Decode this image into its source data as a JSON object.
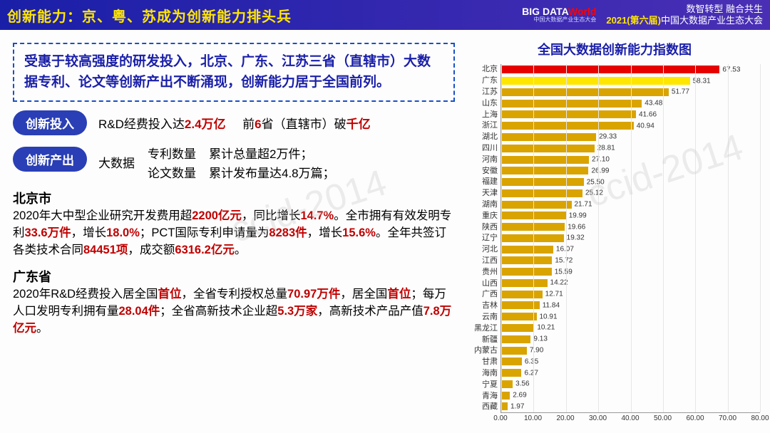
{
  "header": {
    "title": "创新能力：京、粤、苏成为创新能力排头兵",
    "logo_main_a": "BIG DATA",
    "logo_main_b": "World",
    "logo_sub": "中国大数据产业生态大会",
    "conf_line1": "数智转型  融合共生",
    "conf_year": "2021(第六届)",
    "conf_line2_rest": "中国大数据产业生态大会"
  },
  "colors": {
    "bar_default": "#d9a300",
    "header_bg_from": "#1a1fa8",
    "header_bg_to": "#4a2fb5",
    "highlight": "#c00000",
    "title_blue": "#1a1fa8"
  },
  "summary": "受惠于较高强度的研发投入，北京、广东、江苏三省（直辖市）大数据专利、论文等创新产出不断涌现，创新能力居于全国前列。",
  "input_row": {
    "pill": "创新投入",
    "text_a": "R&D经费投入达",
    "text_a_hi": "2.4万亿",
    "text_b_a": "前",
    "text_b_hi1": "6",
    "text_b_mid": "省（直辖市）破",
    "text_b_hi2": "千亿"
  },
  "output_row": {
    "pill": "创新产出",
    "bigdata": "大数据",
    "r1a": "专利数量",
    "r1b": "累计总量超2万件；",
    "r2a": "论文数量",
    "r2b": "累计发布量达4.8万篇；"
  },
  "beijing": {
    "name": "北京市",
    "line": "2020年大中型企业研究开发费用超<span class='hi'>2200亿元</span>，同比增长<span class='hi'>14.7%</span>。全市拥有有效发明专利<span class='hi'>33.6万件</span>，增长<span class='hi'>18.0%</span>；PCT国际专利申请量为<span class='hi'>8283件</span>，增长<span class='hi'>15.6%</span>。全年共签订各类技术合同<span class='hi'>84451项</span>，成交额<span class='hi'>6316.2亿元</span>。"
  },
  "guangdong": {
    "name": "广东省",
    "line": "2020年R&D经费投入居全国<span class='hi'>首位</span>，全省专利授权总量<span class='hi'>70.97万件</span>，居全国<span class='hi'>首位</span>；每万人口发明专利拥有量<span class='hi'>28.04件</span>；全省高新技术企业超<span class='hi'>5.3万家</span>，高新技术产品产值<span class='hi'>7.8万亿元</span>。"
  },
  "chart": {
    "title": "全国大数据创新能力指数图",
    "x_max": 80,
    "x_ticks": [
      0,
      10,
      20,
      30,
      40,
      50,
      60,
      70,
      80
    ],
    "x_tick_labels": [
      "0.00",
      "10.00",
      "20.00",
      "30.00",
      "40.00",
      "50.00",
      "60.00",
      "70.00",
      "80.00"
    ],
    "bars": [
      {
        "label": "北京",
        "value": 67.53,
        "color": "#e60000"
      },
      {
        "label": "广东",
        "value": 58.31,
        "color": "#ffe600"
      },
      {
        "label": "江苏",
        "value": 51.77,
        "color": "#d9a300"
      },
      {
        "label": "山东",
        "value": 43.48,
        "color": "#d9a300"
      },
      {
        "label": "上海",
        "value": 41.66,
        "color": "#d9a300"
      },
      {
        "label": "浙江",
        "value": 40.94,
        "color": "#d9a300"
      },
      {
        "label": "湖北",
        "value": 29.33,
        "color": "#d9a300"
      },
      {
        "label": "四川",
        "value": 28.81,
        "color": "#d9a300"
      },
      {
        "label": "河南",
        "value": 27.1,
        "color": "#d9a300"
      },
      {
        "label": "安徽",
        "value": 26.99,
        "color": "#d9a300"
      },
      {
        "label": "福建",
        "value": 25.5,
        "color": "#d9a300"
      },
      {
        "label": "天津",
        "value": 25.12,
        "color": "#d9a300"
      },
      {
        "label": "湖南",
        "value": 21.71,
        "color": "#d9a300"
      },
      {
        "label": "重庆",
        "value": 19.99,
        "color": "#d9a300"
      },
      {
        "label": "陕西",
        "value": 19.66,
        "color": "#d9a300"
      },
      {
        "label": "辽宁",
        "value": 19.32,
        "color": "#d9a300"
      },
      {
        "label": "河北",
        "value": 16.07,
        "color": "#d9a300"
      },
      {
        "label": "江西",
        "value": 15.72,
        "color": "#d9a300"
      },
      {
        "label": "贵州",
        "value": 15.59,
        "color": "#d9a300"
      },
      {
        "label": "山西",
        "value": 14.22,
        "color": "#d9a300"
      },
      {
        "label": "广西",
        "value": 12.71,
        "color": "#d9a300"
      },
      {
        "label": "吉林",
        "value": 11.84,
        "color": "#d9a300"
      },
      {
        "label": "云南",
        "value": 10.91,
        "color": "#d9a300"
      },
      {
        "label": "黑龙江",
        "value": 10.21,
        "color": "#d9a300"
      },
      {
        "label": "新疆",
        "value": 9.13,
        "color": "#d9a300"
      },
      {
        "label": "内蒙古",
        "value": 7.9,
        "color": "#d9a300"
      },
      {
        "label": "甘肃",
        "value": 6.35,
        "color": "#d9a300"
      },
      {
        "label": "海南",
        "value": 6.27,
        "color": "#d9a300"
      },
      {
        "label": "宁夏",
        "value": 3.56,
        "color": "#d9a300"
      },
      {
        "label": "青海",
        "value": 2.69,
        "color": "#d9a300"
      },
      {
        "label": "西藏",
        "value": 1.97,
        "color": "#d9a300"
      }
    ]
  },
  "watermark": "ccid-2014"
}
